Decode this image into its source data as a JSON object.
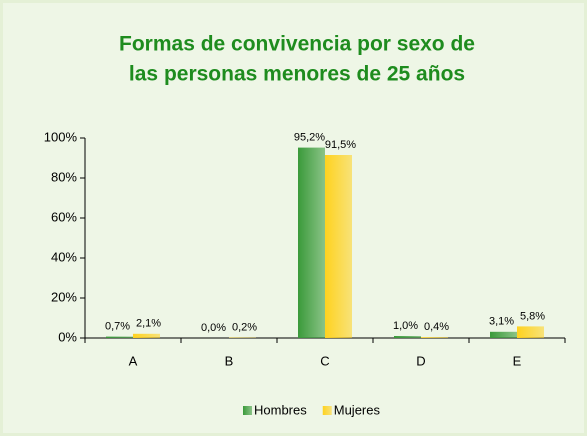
{
  "chart_data": {
    "type": "bar",
    "title": [
      "Formas de convivencia por sexo de",
      "las personas menores de 25 años"
    ],
    "categories": [
      "A",
      "B",
      "C",
      "D",
      "E"
    ],
    "series": [
      {
        "name": "Hombres",
        "color": "#3a9a3a",
        "values": [
          0.7,
          0.0,
          95.2,
          1.0,
          3.1
        ],
        "value_labels": [
          "0,7%",
          "0,0%",
          "95,2%",
          "1,0%",
          "3,1%"
        ]
      },
      {
        "name": "Mujeres",
        "color": "#ffd21f",
        "values": [
          2.1,
          0.2,
          91.5,
          0.4,
          5.8
        ],
        "value_labels": [
          "2,1%",
          "0,2%",
          "91,5%",
          "0,4%",
          "5,8%"
        ]
      }
    ],
    "ylim": [
      0,
      100
    ],
    "yticks": [
      {
        "value": 0,
        "label": "0%"
      },
      {
        "value": 20,
        "label": "20%"
      },
      {
        "value": 40,
        "label": "40%"
      },
      {
        "value": 60,
        "label": "60%"
      },
      {
        "value": 80,
        "label": "80%"
      },
      {
        "value": 100,
        "label": "100%"
      }
    ],
    "legend": "bottom"
  }
}
